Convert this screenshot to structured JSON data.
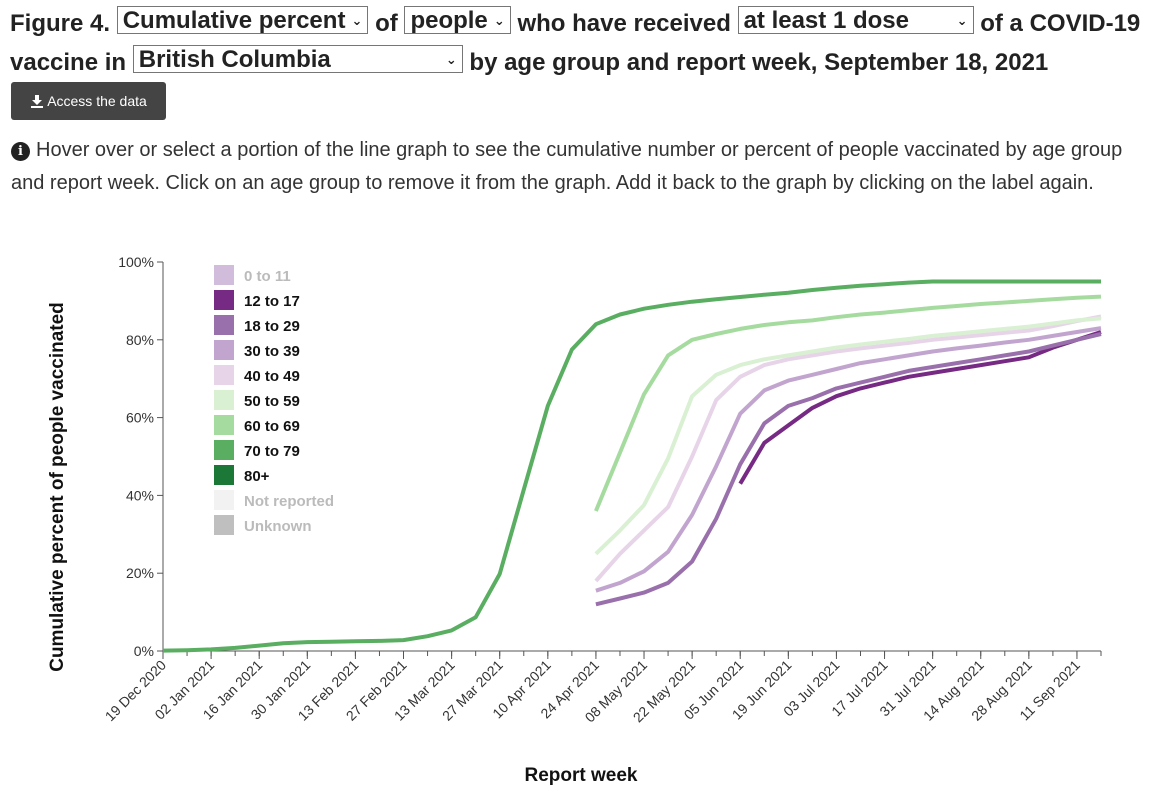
{
  "heading": {
    "figure_label": "Figure 4.",
    "measure_select": "Cumulative percent",
    "of_word": "of",
    "population_select": "people",
    "received_text": "who have received",
    "dose_select": "at least 1 dose",
    "vaccine_text": "of a COVID-19 vaccine in",
    "region_select": "British Columbia",
    "tail_text": "by age group and report week, September 18, 2021"
  },
  "access_button": {
    "label": "Access the data",
    "icon": "download-icon"
  },
  "instructions": {
    "icon": "info-icon",
    "text": "Hover over or select a portion of the line graph to see the cumulative number or percent of people vaccinated by age group and report week. Click on an age group to remove it from the graph. Add it back to the graph by clicking on the label again."
  },
  "chart_data": {
    "type": "line",
    "xlabel": "Report week",
    "ylabel": "Cumulative percent of people vaccinated",
    "ylim": [
      0,
      100
    ],
    "y_ticks": [
      "0%",
      "20%",
      "40%",
      "60%",
      "80%",
      "100%"
    ],
    "x_tick_labels": [
      "19 Dec 2020",
      "02 Jan 2021",
      "16 Jan 2021",
      "30 Jan 2021",
      "13 Feb 2021",
      "27 Feb 2021",
      "13 Mar 2021",
      "27 Mar 2021",
      "10 Apr 2021",
      "24 Apr 2021",
      "08 May 2021",
      "22 May 2021",
      "05 Jun 2021",
      "19 Jun 2021",
      "03 Jul 2021",
      "17 Jul 2021",
      "31 Jul 2021",
      "14 Aug 2021",
      "28 Aug 2021",
      "11 Sep 2021"
    ],
    "weeks": [
      "19 Dec 2020",
      "26 Dec 2020",
      "02 Jan 2021",
      "09 Jan 2021",
      "16 Jan 2021",
      "23 Jan 2021",
      "30 Jan 2021",
      "06 Feb 2021",
      "13 Feb 2021",
      "20 Feb 2021",
      "27 Feb 2021",
      "06 Mar 2021",
      "13 Mar 2021",
      "20 Mar 2021",
      "27 Mar 2021",
      "03 Apr 2021",
      "10 Apr 2021",
      "17 Apr 2021",
      "24 Apr 2021",
      "01 May 2021",
      "08 May 2021",
      "15 May 2021",
      "22 May 2021",
      "29 May 2021",
      "05 Jun 2021",
      "12 Jun 2021",
      "19 Jun 2021",
      "26 Jun 2021",
      "03 Jul 2021",
      "10 Jul 2021",
      "17 Jul 2021",
      "24 Jul 2021",
      "31 Jul 2021",
      "07 Aug 2021",
      "14 Aug 2021",
      "21 Aug 2021",
      "28 Aug 2021",
      "04 Sep 2021",
      "11 Sep 2021",
      "18 Sep 2021"
    ],
    "legend_position": "top-left",
    "grid": false,
    "series": [
      {
        "name": "0 to 11",
        "color": "#c2a5cf",
        "active": false,
        "values": []
      },
      {
        "name": "12 to 17",
        "color": "#762a83",
        "active": true,
        "start_index": 24,
        "values": [
          43,
          53.5,
          58,
          62.5,
          65.5,
          67.5,
          69,
          70.5,
          71.5,
          72.5,
          73.5,
          74.5,
          75.5,
          78,
          80,
          82
        ]
      },
      {
        "name": "18 to 29",
        "color": "#9970ab",
        "active": true,
        "start_index": 18,
        "values": [
          12,
          13.5,
          15,
          17.5,
          23,
          34,
          48,
          58.5,
          63,
          65,
          67.5,
          69,
          70.5,
          72,
          73,
          74,
          75,
          76,
          77,
          78.5,
          80,
          81.5
        ]
      },
      {
        "name": "30 to 39",
        "color": "#c2a5cf",
        "active": true,
        "start_index": 18,
        "values": [
          15.5,
          17.5,
          20.5,
          25.5,
          35,
          47.5,
          61,
          67,
          69.5,
          71,
          72.5,
          74,
          75,
          76,
          77,
          77.8,
          78.5,
          79.3,
          80,
          81,
          82,
          83
        ]
      },
      {
        "name": "40 to 49",
        "color": "#e7d4e8",
        "active": true,
        "start_index": 18,
        "values": [
          18,
          25,
          31,
          37,
          50,
          64.5,
          70.5,
          73.5,
          75,
          76,
          77,
          77.8,
          78.5,
          79.2,
          80,
          80.6,
          81.2,
          81.8,
          82.4,
          83.5,
          84.8,
          86
        ]
      },
      {
        "name": "50 to 59",
        "color": "#d9f0d3",
        "active": true,
        "start_index": 18,
        "values": [
          25,
          31,
          37.5,
          49.5,
          65.5,
          71,
          73.5,
          75,
          76,
          77,
          78,
          78.8,
          79.5,
          80.2,
          81,
          81.6,
          82.2,
          82.8,
          83.4,
          84.2,
          85,
          85.5
        ]
      },
      {
        "name": "60 to 69",
        "color": "#a6dba0",
        "active": true,
        "start_index": 18,
        "values": [
          36,
          51,
          66,
          76,
          80,
          81.5,
          82.8,
          83.8,
          84.5,
          85,
          85.8,
          86.5,
          87,
          87.6,
          88.2,
          88.7,
          89.2,
          89.6,
          90,
          90.4,
          90.8,
          91.1
        ]
      },
      {
        "name": "70 to 79",
        "color": "#5aae61",
        "active": true,
        "start_index": 0,
        "values": [
          0.1,
          0.2,
          0.4,
          0.8,
          1.4,
          2.0,
          2.3,
          2.4,
          2.5,
          2.6,
          2.8,
          3.8,
          5.3,
          8.7,
          19.8,
          41.5,
          63,
          77.5,
          84,
          86.5,
          88,
          89,
          89.8,
          90.4,
          91,
          91.6,
          92.1,
          92.8,
          93.4,
          93.9,
          94.3,
          94.7,
          95,
          95,
          95,
          95,
          95,
          95,
          95,
          95
        ]
      },
      {
        "name": "80+",
        "color": "#1b7837",
        "active": true,
        "values": []
      },
      {
        "name": "Not reported",
        "color": "#eeeeee",
        "active": false,
        "values": []
      },
      {
        "name": "Unknown",
        "color": "#aaaaaa",
        "active": false,
        "values": []
      }
    ]
  }
}
